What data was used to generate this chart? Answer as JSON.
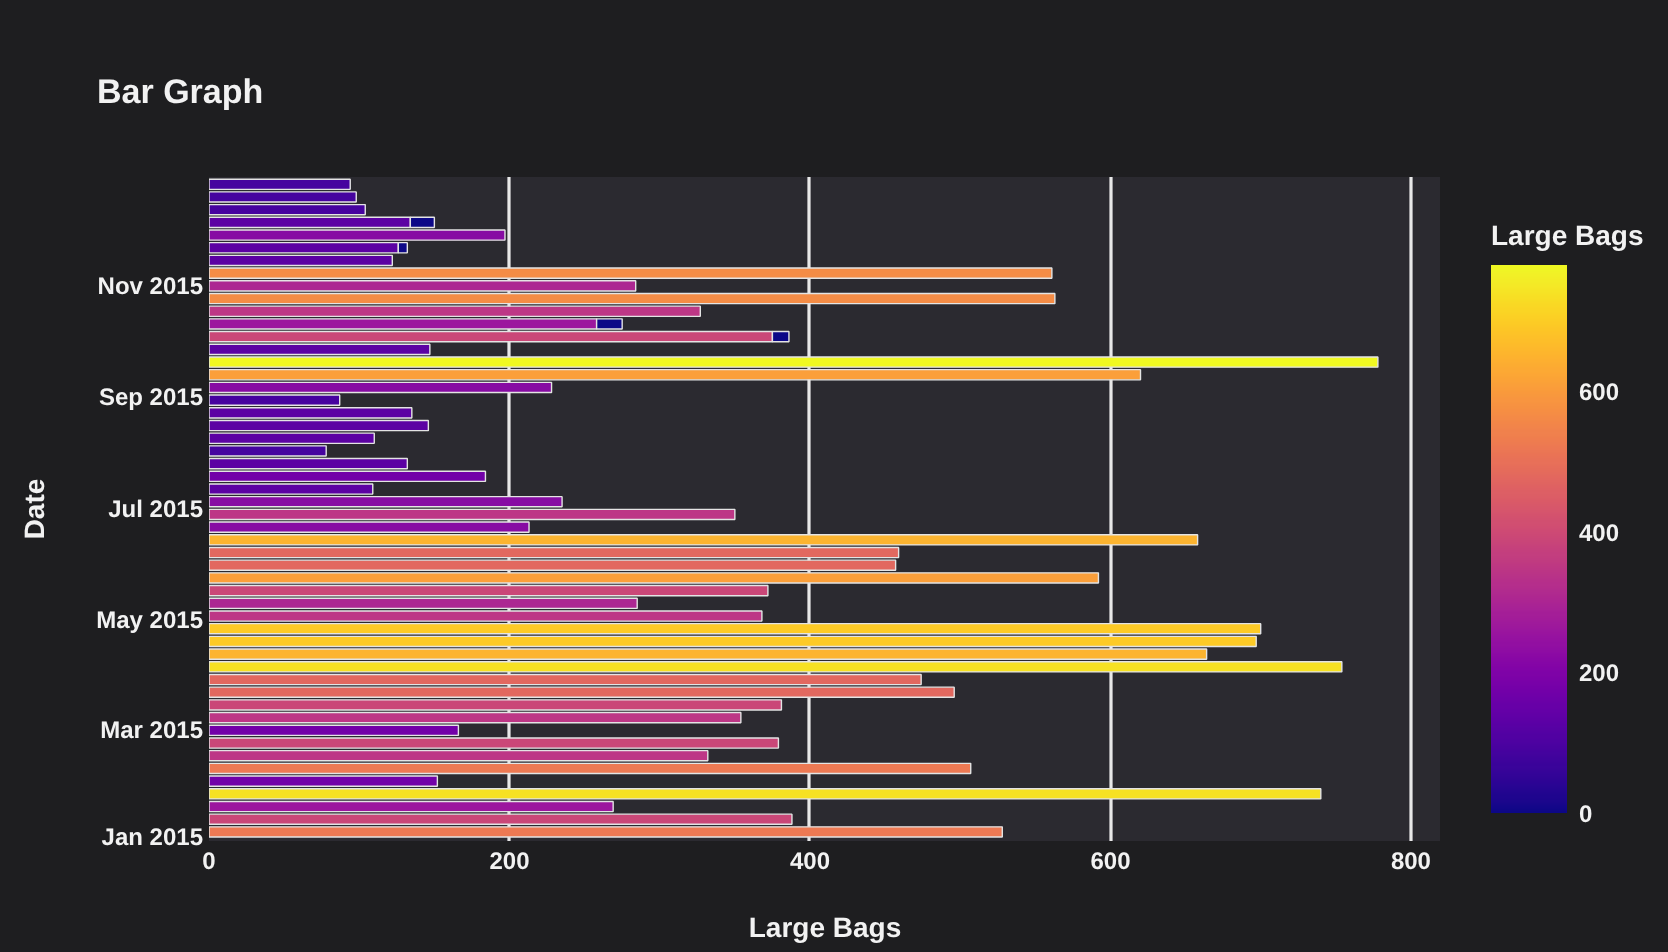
{
  "chart_data": {
    "type": "bar",
    "orientation": "horizontal",
    "stacked": true,
    "title": "Bar Graph",
    "xlabel": "Large Bags",
    "ylabel": "Date",
    "clabel": "Large Bags",
    "x": [
      "2015-01-04",
      "2015-01-11",
      "2015-01-18",
      "2015-01-25",
      "2015-02-01",
      "2015-02-08",
      "2015-02-15",
      "2015-02-22",
      "2015-03-01",
      "2015-03-08",
      "2015-03-15",
      "2015-03-22",
      "2015-03-29",
      "2015-04-05",
      "2015-04-12",
      "2015-04-19",
      "2015-04-26",
      "2015-05-03",
      "2015-05-10",
      "2015-05-17",
      "2015-05-24",
      "2015-05-31",
      "2015-06-07",
      "2015-06-14",
      "2015-06-21",
      "2015-06-28",
      "2015-07-05",
      "2015-07-12",
      "2015-07-19",
      "2015-07-26",
      "2015-08-02",
      "2015-08-09",
      "2015-08-16",
      "2015-08-23",
      "2015-08-30",
      "2015-09-06",
      "2015-09-13",
      "2015-09-20",
      "2015-09-27",
      "2015-10-04",
      "2015-10-11",
      "2015-10-18",
      "2015-10-25",
      "2015-11-01",
      "2015-11-08",
      "2015-11-15",
      "2015-11-22",
      "2015-11-29",
      "2015-12-06",
      "2015-12-13",
      "2015-12-20",
      "2015-12-27"
    ],
    "series": [
      {
        "values": [
          528,
          388,
          269,
          740,
          152,
          507,
          332,
          379,
          166,
          354,
          381,
          496,
          474,
          754,
          664,
          697,
          700,
          368,
          285,
          372,
          592,
          457,
          459,
          658,
          213,
          350,
          235,
          109,
          184,
          132,
          78,
          110,
          146,
          135,
          87,
          228,
          620,
          778,
          147,
          375,
          258,
          327,
          563,
          284,
          561,
          122,
          126,
          197,
          134,
          104,
          98,
          94
        ],
        "colors": [
          "#ed7953",
          "#ca4778",
          "#9c179e",
          "#f6e123",
          "#7201a8",
          "#ed7953",
          "#bd3786",
          "#ca4778",
          "#7201a8",
          "#bd3786",
          "#ca4778",
          "#e2685f",
          "#e2685f",
          "#f6e123",
          "#fcb430",
          "#fdca26",
          "#fdca26",
          "#bd3786",
          "#ac2792",
          "#ca4778",
          "#fb9f3a",
          "#e2685f",
          "#e2685f",
          "#fcb430",
          "#870ca3",
          "#bd3786",
          "#870ca3",
          "#5c02a3",
          "#7201a8",
          "#5c02a3",
          "#46039f",
          "#5c02a3",
          "#5c02a3",
          "#5c02a3",
          "#46039f",
          "#870ca3",
          "#fb9f3a",
          "#f0f921",
          "#5c02a3",
          "#ca4778",
          "#9c179e",
          "#bd3786",
          "#f48c46",
          "#ac2792",
          "#f48c46",
          "#5c02a3",
          "#5c02a3",
          "#870ca3",
          "#5c02a3",
          "#46039f",
          "#46039f",
          "#46039f"
        ]
      },
      {
        "color": "#0d0887",
        "values": [
          null,
          null,
          null,
          null,
          null,
          null,
          null,
          null,
          null,
          null,
          null,
          null,
          null,
          null,
          null,
          null,
          null,
          null,
          null,
          null,
          null,
          null,
          null,
          null,
          null,
          null,
          null,
          null,
          null,
          null,
          null,
          null,
          null,
          null,
          null,
          null,
          null,
          null,
          null,
          11,
          17,
          null,
          null,
          null,
          null,
          null,
          6,
          null,
          16,
          null,
          null,
          null
        ]
      }
    ],
    "clim": [
      0,
      780
    ],
    "cticks": [
      0,
      200,
      400,
      600
    ],
    "xlim": [
      0,
      820
    ],
    "xticks": [
      0,
      200,
      400,
      600,
      800
    ],
    "ylim": [
      "2014-12-30",
      "2015-12-31"
    ],
    "yticks": [
      {
        "value": "2015-01-01",
        "label": "Jan 2015"
      },
      {
        "value": "2015-03-01",
        "label": "Mar 2015"
      },
      {
        "value": "2015-05-01",
        "label": "May 2015"
      },
      {
        "value": "2015-07-01",
        "label": "Jul 2015"
      },
      {
        "value": "2015-09-01",
        "label": "Sep 2015"
      },
      {
        "value": "2015-11-01",
        "label": "Nov 2015"
      }
    ],
    "grid": "x"
  }
}
